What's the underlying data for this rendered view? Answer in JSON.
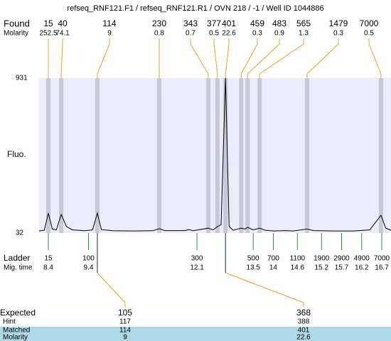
{
  "title": "refseq_RNF121.F1 / refseq_RNF121.R1 / OVN 218 / -1 / Well ID 1044886",
  "found": {
    "label": "Found",
    "molarity_label": "Molarity",
    "peaks": [
      {
        "size": 15,
        "molarity": 252.5,
        "time": 8.4
      },
      {
        "size": 40,
        "molarity": 74.1,
        "time": 8.72
      },
      {
        "size": 114,
        "molarity": 9,
        "time": 9.62
      },
      {
        "size": 230,
        "molarity": 0.8,
        "time": 11.16
      },
      {
        "size": 343,
        "molarity": 0.7,
        "time": 12.38
      },
      {
        "size": 377,
        "molarity": 0.5,
        "time": 12.61
      },
      {
        "size": 401,
        "molarity": 22.6,
        "time": 12.81
      },
      {
        "size": 459,
        "molarity": 0.3,
        "time": 13.2
      },
      {
        "size": 483,
        "molarity": 0.9,
        "time": 13.36
      },
      {
        "size": 565,
        "molarity": 1.3,
        "time": 13.66
      },
      {
        "size": 1479,
        "molarity": 0.3,
        "time": 14.84
      },
      {
        "size": 7000,
        "molarity": 0.5,
        "time": 16.68
      }
    ]
  },
  "chart_data": {
    "type": "line",
    "y_label": "Fluo.",
    "xlim": [
      8.17,
      16.93
    ],
    "ylim": [
      32,
      931
    ],
    "yticks": [
      32,
      931
    ],
    "color": "#000000",
    "x": [
      8.17,
      8.3,
      8.4,
      8.5,
      8.6,
      8.72,
      8.85,
      9.0,
      9.3,
      9.5,
      9.62,
      9.72,
      10.0,
      10.5,
      11.0,
      11.16,
      11.3,
      11.8,
      11.9,
      12.0,
      12.38,
      12.5,
      12.61,
      12.7,
      12.81,
      12.9,
      13.0,
      13.2,
      13.3,
      13.36,
      13.5,
      13.66,
      13.8,
      14.0,
      14.3,
      14.5,
      14.84,
      15.0,
      15.5,
      16.0,
      16.4,
      16.68,
      16.8,
      16.93
    ],
    "values": [
      44,
      48,
      147,
      55,
      50,
      140,
      70,
      50,
      45,
      50,
      147,
      52,
      45,
      44,
      45,
      57,
      46,
      46,
      52,
      45,
      60,
      50,
      70,
      80,
      931,
      70,
      48,
      60,
      55,
      65,
      50,
      60,
      48,
      44,
      46,
      44,
      55,
      46,
      44,
      44,
      50,
      135,
      60,
      48
    ]
  },
  "ladder": {
    "label": "Ladder",
    "time_label": "Mig. time",
    "sizes": [
      15,
      100,
      300,
      500,
      700,
      1100,
      1900,
      2900,
      4900,
      7000
    ],
    "times": [
      8.4,
      9.4,
      12.1,
      13.5,
      14,
      14.6,
      15.2,
      15.7,
      16.2,
      16.7
    ]
  },
  "expected": {
    "rows": [
      {
        "label": "Expected",
        "values": [
          105,
          368
        ]
      },
      {
        "label": "Hint",
        "values": [
          117,
          388
        ]
      },
      {
        "label": "Matched",
        "values": [
          114,
          401
        ]
      },
      {
        "label": "Molarity",
        "values": [
          9,
          22.6
        ]
      }
    ]
  }
}
